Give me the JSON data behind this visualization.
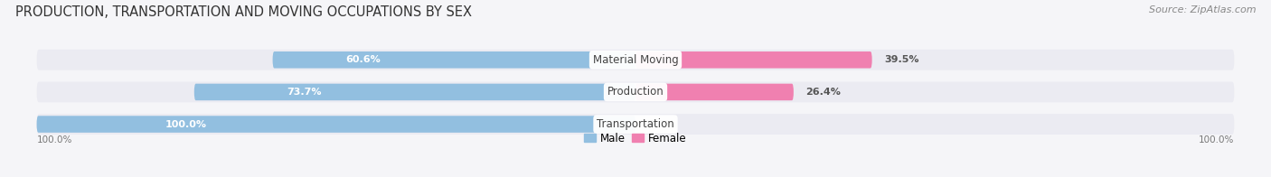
{
  "title": "PRODUCTION, TRANSPORTATION AND MOVING OCCUPATIONS BY SEX",
  "source": "Source: ZipAtlas.com",
  "categories": [
    "Transportation",
    "Production",
    "Material Moving"
  ],
  "male_pct": [
    100.0,
    73.7,
    60.6
  ],
  "female_pct": [
    0.0,
    26.4,
    39.5
  ],
  "male_color": "#92bfe0",
  "female_color": "#f080b0",
  "bar_bg_color": "#e4e4ec",
  "row_bg_color": "#ebebf2",
  "male_label": "Male",
  "female_label": "Female",
  "label_color_male": "#ffffff",
  "label_color_female": "#ffffff",
  "category_label_color": "#444444",
  "axis_label_left": "100.0%",
  "axis_label_right": "100.0%",
  "title_fontsize": 10.5,
  "source_fontsize": 8,
  "bar_height": 0.52,
  "figsize": [
    14.06,
    1.96
  ],
  "dpi": 100
}
